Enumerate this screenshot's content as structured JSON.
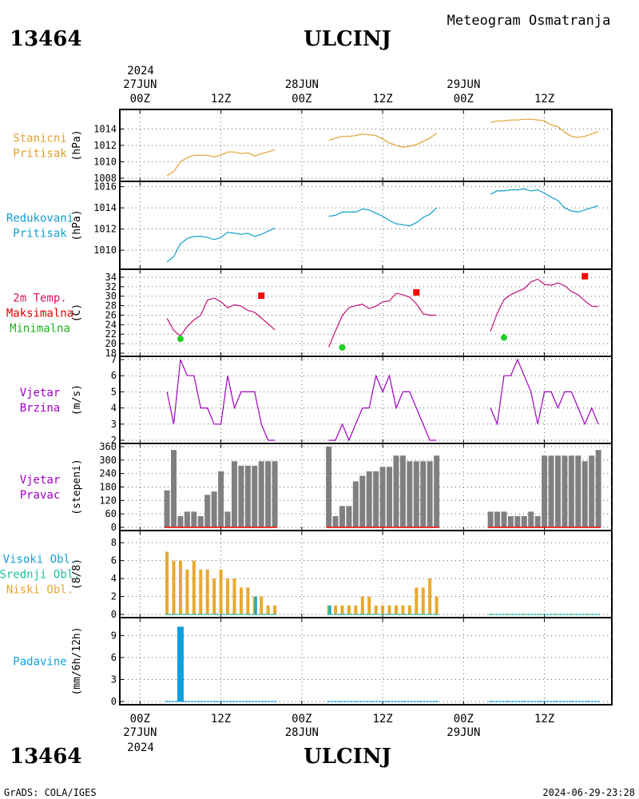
{
  "header": {
    "station_id": "13464",
    "station_name": "ULCINJ",
    "product": "Meteogram Osmatranja"
  },
  "footer": {
    "station_id": "13464",
    "station_name": "ULCINJ",
    "credit": "GrADS: COLA/IGES",
    "timestamp": "2024-06-29-23:28"
  },
  "colors": {
    "pressure_station": "#e0a030",
    "pressure_reduced": "#10a0d0",
    "temperature": "#c0107a",
    "tmax": "#ff0000",
    "tmin": "#20d020",
    "wind": "#a000c0",
    "bars_gray": "#808080",
    "clouds_low": "#e8a830",
    "clouds_mid": "#20c0a0",
    "clouds_high": "#10a0d0",
    "precip": "#10a0e0",
    "label_temp": "#e01060",
    "label_max": "#e00000",
    "label_min": "#20b020"
  },
  "time_axis": {
    "top_year": "2024",
    "bottom_year": "2024",
    "ticks": [
      {
        "hour": 0,
        "label": "00Z",
        "date": "27JUN"
      },
      {
        "hour": 12,
        "label": "12Z",
        "date": ""
      },
      {
        "hour": 24,
        "label": "00Z",
        "date": "28JUN"
      },
      {
        "hour": 36,
        "label": "12Z",
        "date": ""
      },
      {
        "hour": 48,
        "label": "00Z",
        "date": "29JUN"
      },
      {
        "hour": 60,
        "label": "12Z",
        "date": ""
      }
    ],
    "range_hours": [
      -3,
      70
    ]
  },
  "chart_data": [
    {
      "type": "line",
      "id": "station_pressure",
      "title_lines": [
        "Stanicni",
        "Pritisak"
      ],
      "ylabel": "(hPa)",
      "ylim": [
        1008,
        1016
      ],
      "yticks": [
        1008,
        1010,
        1012,
        1014
      ],
      "segments": [
        {
          "x": [
            4,
            5,
            6,
            7,
            8,
            9,
            10,
            11,
            12,
            13,
            14,
            15,
            16,
            17,
            18,
            19,
            20
          ],
          "y": [
            1008.3,
            1008.8,
            1010.0,
            1010.5,
            1010.8,
            1010.8,
            1010.8,
            1010.6,
            1010.8,
            1011.2,
            1011.2,
            1011.0,
            1011.1,
            1010.7,
            1011.0,
            1011.2,
            1011.5
          ]
        },
        {
          "x": [
            28,
            29,
            30,
            31,
            32,
            33,
            34,
            35,
            36,
            37,
            38,
            39,
            40,
            41,
            42,
            43,
            44
          ],
          "y": [
            1012.6,
            1012.9,
            1013.1,
            1013.1,
            1013.2,
            1013.4,
            1013.3,
            1013.2,
            1012.8,
            1012.3,
            1012.0,
            1011.8,
            1011.9,
            1012.1,
            1012.5,
            1012.9,
            1013.5
          ]
        },
        {
          "x": [
            52,
            53,
            54,
            55,
            56,
            57,
            58,
            59,
            60,
            61,
            62,
            63,
            64,
            65,
            66,
            67,
            68
          ],
          "y": [
            1014.8,
            1015.0,
            1015.0,
            1015.1,
            1015.1,
            1015.2,
            1015.2,
            1015.1,
            1015.0,
            1014.5,
            1014.3,
            1013.6,
            1013.1,
            1013.0,
            1013.1,
            1013.4,
            1013.7
          ]
        }
      ]
    },
    {
      "type": "line",
      "id": "reduced_pressure",
      "title_lines": [
        "Redukovani",
        "Pritisak"
      ],
      "ylabel": "(hPa)",
      "ylim": [
        1008.5,
        1016.2
      ],
      "yticks": [
        1010,
        1012,
        1014,
        1016
      ],
      "segments": [
        {
          "x": [
            4,
            5,
            6,
            7,
            8,
            9,
            10,
            11,
            12,
            13,
            14,
            15,
            16,
            17,
            18,
            19,
            20
          ],
          "y": [
            1008.9,
            1009.4,
            1010.6,
            1011.1,
            1011.3,
            1011.3,
            1011.2,
            1011.0,
            1011.2,
            1011.7,
            1011.6,
            1011.5,
            1011.6,
            1011.3,
            1011.5,
            1011.8,
            1012.1
          ]
        },
        {
          "x": [
            28,
            29,
            30,
            31,
            32,
            33,
            34,
            35,
            36,
            37,
            38,
            39,
            40,
            41,
            42,
            43,
            44
          ],
          "y": [
            1013.2,
            1013.3,
            1013.6,
            1013.6,
            1013.6,
            1013.9,
            1013.8,
            1013.5,
            1013.2,
            1012.8,
            1012.5,
            1012.4,
            1012.3,
            1012.6,
            1013.1,
            1013.4,
            1014.0
          ]
        },
        {
          "x": [
            52,
            53,
            54,
            55,
            56,
            57,
            58,
            59,
            60,
            61,
            62,
            63,
            64,
            65,
            66,
            67,
            68
          ],
          "y": [
            1015.3,
            1015.6,
            1015.6,
            1015.7,
            1015.7,
            1015.8,
            1015.6,
            1015.7,
            1015.4,
            1015.0,
            1014.7,
            1014.0,
            1013.7,
            1013.6,
            1013.8,
            1014.0,
            1014.2
          ]
        }
      ]
    },
    {
      "type": "line",
      "id": "temperature",
      "title_lines": [
        "2m Temp.",
        "Maksimalna",
        "Minimalna"
      ],
      "ylabel": "(C)",
      "ylim": [
        18,
        35
      ],
      "yticks": [
        18,
        20,
        22,
        24,
        26,
        28,
        30,
        32,
        34
      ],
      "segments": [
        {
          "x": [
            4,
            5,
            6,
            7,
            8,
            9,
            10,
            11,
            12,
            13,
            14,
            15,
            16,
            17,
            18,
            19,
            20
          ],
          "y": [
            25.3,
            22.8,
            21.6,
            23.6,
            25.0,
            26.0,
            29.2,
            29.6,
            28.8,
            27.6,
            28.2,
            27.9,
            27.0,
            26.6,
            25.4,
            24.2,
            22.9
          ]
        },
        {
          "x": [
            28,
            29,
            30,
            31,
            32,
            33,
            34,
            35,
            36,
            37,
            38,
            39,
            40,
            41,
            42,
            43,
            44
          ],
          "y": [
            19.3,
            22.7,
            25.9,
            27.6,
            28.0,
            28.3,
            27.4,
            27.9,
            28.8,
            29.0,
            30.6,
            30.3,
            29.8,
            28.4,
            26.3,
            26.0,
            26.0
          ]
        },
        {
          "x": [
            52,
            53,
            54,
            55,
            56,
            57,
            58,
            59,
            60,
            61,
            62,
            63,
            64,
            65,
            66,
            67,
            68
          ],
          "y": [
            22.6,
            26.4,
            29.3,
            30.3,
            31.0,
            31.6,
            33.0,
            33.6,
            32.5,
            32.3,
            32.8,
            32.2,
            31.0,
            30.3,
            29.0,
            27.9,
            27.8
          ]
        }
      ],
      "tmax": [
        {
          "x": 18,
          "y": 30.1
        },
        {
          "x": 41,
          "y": 30.8
        },
        {
          "x": 66,
          "y": 34.2
        }
      ],
      "tmin": [
        {
          "x": 6,
          "y": 21.0
        },
        {
          "x": 30,
          "y": 19.2
        },
        {
          "x": 54,
          "y": 21.3
        }
      ]
    },
    {
      "type": "line",
      "id": "wind_speed",
      "title_lines": [
        "Vjetar",
        "Brzina"
      ],
      "ylabel": "(m/s)",
      "ylim": [
        2,
        7
      ],
      "yticks": [
        2,
        3,
        4,
        5,
        6,
        7
      ],
      "segments": [
        {
          "x": [
            4,
            5,
            6,
            7,
            8,
            9,
            10,
            11,
            12,
            13,
            14,
            15,
            16,
            17,
            18,
            19,
            20
          ],
          "y": [
            5,
            3,
            7,
            6,
            6,
            4,
            4,
            3,
            3,
            6,
            4,
            5,
            5,
            5,
            3,
            2,
            2
          ]
        },
        {
          "x": [
            28,
            29,
            30,
            31,
            32,
            33,
            34,
            35,
            36,
            37,
            38,
            39,
            40,
            41,
            42,
            43,
            44
          ],
          "y": [
            2,
            2,
            3,
            2,
            3,
            4,
            4,
            6,
            5,
            6,
            4,
            5,
            5,
            4,
            3,
            2,
            2
          ]
        },
        {
          "x": [
            52,
            53,
            54,
            55,
            56,
            57,
            58,
            59,
            60,
            61,
            62,
            63,
            64,
            65,
            66,
            67,
            68
          ],
          "y": [
            4,
            3,
            6,
            6,
            7,
            6,
            5,
            3,
            5,
            5,
            4,
            5,
            5,
            4,
            3,
            4,
            3
          ]
        }
      ]
    },
    {
      "type": "bar",
      "id": "wind_direction",
      "title_lines": [
        "Vjetar",
        "Pravac"
      ],
      "ylabel": "(stepeni)",
      "ylim": [
        0,
        360
      ],
      "yticks": [
        0,
        60,
        120,
        180,
        240,
        300,
        360
      ],
      "segments": [
        {
          "x": [
            4,
            5,
            6,
            7,
            8,
            9,
            10,
            11,
            12,
            13,
            14,
            15,
            16,
            17,
            18,
            19,
            20
          ],
          "y": [
            165,
            345,
            50,
            70,
            70,
            50,
            145,
            160,
            250,
            70,
            295,
            275,
            275,
            275,
            295,
            295,
            295
          ]
        },
        {
          "x": [
            28,
            29,
            30,
            31,
            32,
            33,
            34,
            35,
            36,
            37,
            38,
            39,
            40,
            41,
            42,
            43,
            44
          ],
          "y": [
            360,
            50,
            95,
            95,
            205,
            230,
            250,
            250,
            270,
            270,
            320,
            320,
            295,
            295,
            295,
            295,
            320
          ]
        },
        {
          "x": [
            52,
            53,
            54,
            55,
            56,
            57,
            58,
            59,
            60,
            61,
            62,
            63,
            64,
            65,
            66,
            67,
            68
          ],
          "y": [
            70,
            70,
            70,
            50,
            50,
            50,
            70,
            50,
            320,
            320,
            320,
            320,
            320,
            320,
            295,
            320,
            345
          ]
        }
      ]
    },
    {
      "type": "bar",
      "id": "clouds",
      "title_lines": [
        "Visoki Obl.",
        "Srednji Obl.",
        "Niski Obl."
      ],
      "ylabel": "(8/8)",
      "ylim": [
        0,
        9
      ],
      "yticks": [
        0,
        2,
        4,
        6,
        8
      ],
      "series": [
        {
          "name": "Niski Obl.",
          "segments": [
            {
              "x": [
                4,
                5,
                6,
                7,
                8,
                9,
                10,
                11,
                12,
                13,
                14,
                15,
                16,
                17,
                18,
                19,
                20
              ],
              "y": [
                7,
                6,
                6,
                5,
                6,
                5,
                5,
                4,
                5,
                4,
                4,
                3,
                3,
                2,
                2,
                1,
                1
              ]
            },
            {
              "x": [
                28,
                29,
                30,
                31,
                32,
                33,
                34,
                35,
                36,
                37,
                38,
                39,
                40,
                41,
                42,
                43,
                44
              ],
              "y": [
                1,
                1,
                1,
                1,
                1,
                2,
                2,
                1,
                1,
                1,
                1,
                1,
                1,
                3,
                3,
                4,
                2
              ]
            },
            {
              "x": [
                52,
                53,
                54,
                55,
                56,
                57,
                58,
                59,
                60,
                61,
                62,
                63,
                64,
                65,
                66,
                67,
                68
              ],
              "y": [
                0,
                0,
                0,
                0,
                0,
                0,
                0,
                0,
                0,
                0,
                0,
                0,
                0,
                0,
                0,
                0,
                0
              ]
            }
          ]
        },
        {
          "name": "Srednji Obl.",
          "segments": [
            {
              "x": [
                17
              ],
              "y": [
                2
              ]
            },
            {
              "x": [
                28
              ],
              "y": [
                1
              ]
            }
          ]
        },
        {
          "name": "Visoki Obl.",
          "segments": [
            {
              "x": [
                17
              ],
              "y": [
                2
              ]
            },
            {
              "x": [
                28
              ],
              "y": [
                1
              ]
            }
          ]
        }
      ]
    },
    {
      "type": "bar",
      "id": "precipitation",
      "title_lines": [
        "Padavine"
      ],
      "ylabel": "(mm/6h/12h)",
      "ylim": [
        0,
        11
      ],
      "yticks": [
        0,
        3,
        6,
        9
      ],
      "segments": [
        {
          "x": [
            6
          ],
          "y": [
            10.2
          ]
        }
      ]
    }
  ]
}
